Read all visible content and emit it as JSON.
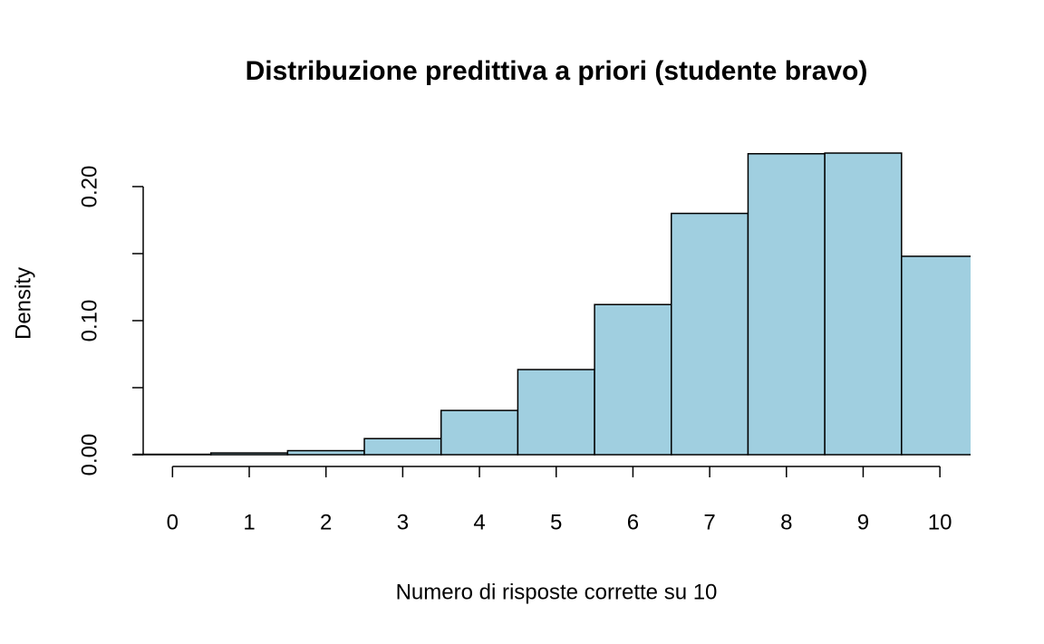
{
  "chart_data": {
    "type": "histogram",
    "title": "Distribuzione predittiva a priori (studente bravo)",
    "x_label": "Numero di risposte corrette su 10",
    "y_label": "Density",
    "bins": [
      -0.5,
      0.5,
      1.5,
      2.5,
      3.5,
      4.5,
      5.5,
      6.5,
      7.5,
      8.5,
      9.5,
      10.5
    ],
    "values": [
      0.0003,
      0.0013,
      0.003,
      0.012,
      0.033,
      0.0635,
      0.112,
      0.18,
      0.2245,
      0.225,
      0.148
    ],
    "color": "#a0cfe0",
    "xlim": [
      -0.5,
      10.4
    ],
    "xticks": [
      0,
      1,
      2,
      3,
      4,
      5,
      6,
      7,
      8,
      9,
      10
    ],
    "ylim": [
      0,
      0.2
    ],
    "yticks": [
      {
        "value": 0,
        "label": "0.00"
      },
      {
        "value": 0.1,
        "label": "0.10"
      },
      {
        "value": 0.2,
        "label": "0.20"
      }
    ],
    "yminor_ticks": [
      0.05,
      0.15
    ]
  }
}
